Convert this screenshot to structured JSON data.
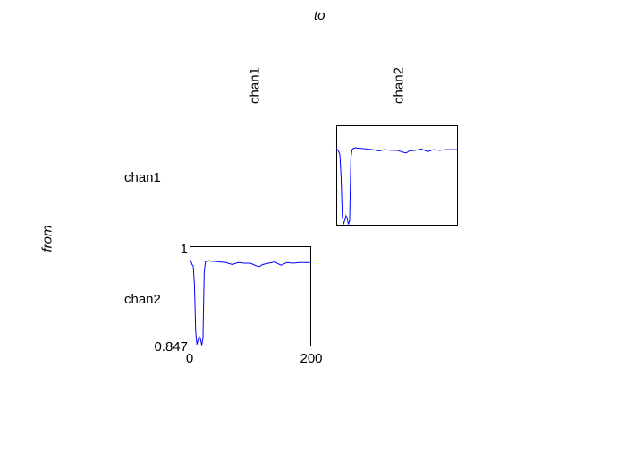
{
  "header": {
    "to_label": "to",
    "from_label": "from"
  },
  "columns": [
    "chan1",
    "chan2"
  ],
  "rows": [
    "chan1",
    "chan2"
  ],
  "colors": {
    "line": "#0000ff",
    "axes": "#000000"
  },
  "chart_data": [
    {
      "type": "line",
      "from": "chan1",
      "to": "chan2",
      "xlim": [
        0,
        200
      ],
      "ylim": [
        0.847,
        1
      ],
      "x": [
        0,
        2,
        4,
        6,
        8,
        10,
        12,
        14,
        16,
        18,
        20,
        22,
        24,
        26,
        28,
        30,
        32,
        35,
        40,
        50,
        60,
        70,
        80,
        90,
        100,
        110,
        115,
        120,
        130,
        140,
        150,
        160,
        170,
        180,
        190,
        200
      ],
      "y": [
        0.965,
        0.963,
        0.96,
        0.955,
        0.92,
        0.86,
        0.85,
        0.855,
        0.862,
        0.858,
        0.849,
        0.855,
        0.95,
        0.963,
        0.965,
        0.965,
        0.966,
        0.965,
        0.965,
        0.964,
        0.963,
        0.961,
        0.963,
        0.962,
        0.962,
        0.959,
        0.958,
        0.961,
        0.962,
        0.964,
        0.96,
        0.963,
        0.962,
        0.963,
        0.963,
        0.963
      ]
    },
    {
      "type": "line",
      "from": "chan2",
      "to": "chan1",
      "xlim": [
        0,
        200
      ],
      "ylim": [
        0.847,
        1
      ],
      "xticks": [
        "0",
        "200"
      ],
      "yticks": [
        "0.847",
        "1"
      ],
      "x": [
        0,
        2,
        4,
        6,
        8,
        10,
        12,
        14,
        16,
        18,
        20,
        22,
        24,
        26,
        28,
        30,
        32,
        35,
        40,
        50,
        60,
        70,
        80,
        90,
        100,
        110,
        115,
        120,
        130,
        140,
        150,
        160,
        170,
        180,
        190,
        200
      ],
      "y": [
        0.98,
        0.978,
        0.972,
        0.97,
        0.94,
        0.87,
        0.85,
        0.857,
        0.862,
        0.858,
        0.849,
        0.86,
        0.96,
        0.976,
        0.977,
        0.977,
        0.978,
        0.977,
        0.977,
        0.976,
        0.975,
        0.972,
        0.975,
        0.974,
        0.974,
        0.97,
        0.969,
        0.972,
        0.974,
        0.976,
        0.971,
        0.975,
        0.974,
        0.975,
        0.975,
        0.975
      ]
    }
  ]
}
